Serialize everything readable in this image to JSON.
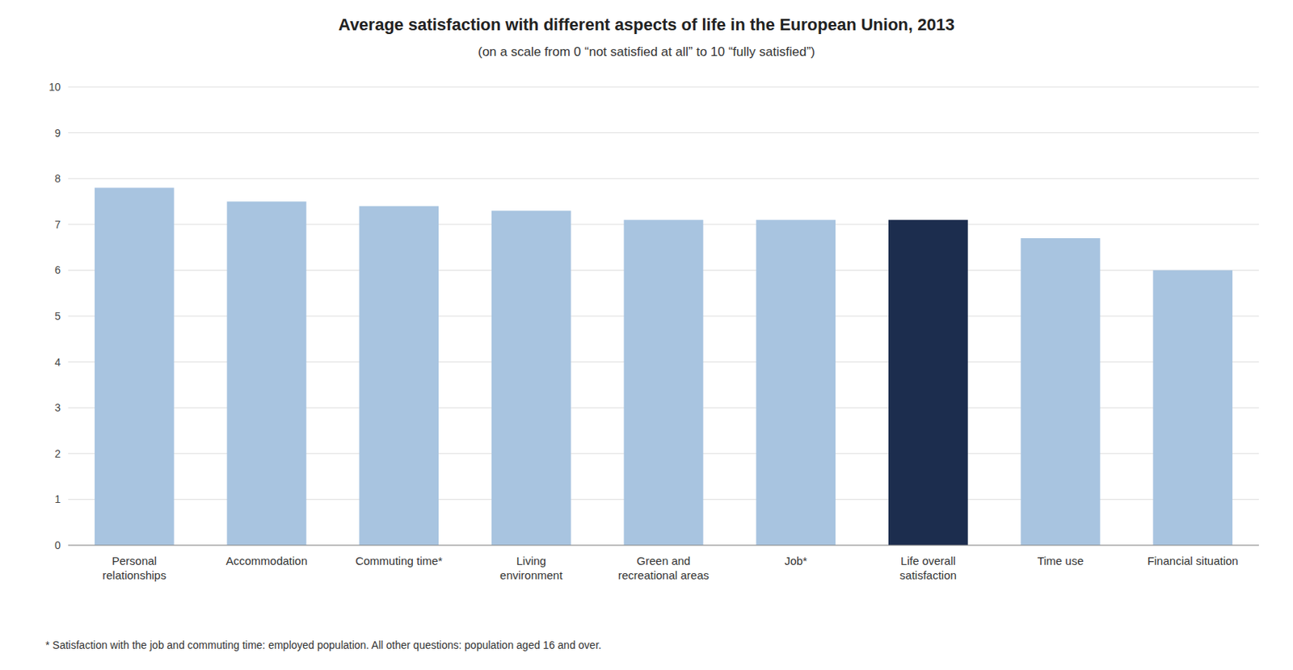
{
  "chart_data": {
    "type": "bar",
    "title": "Average satisfaction with different aspects of life in the European Union, 2013",
    "subtitle": "(on a scale from 0 “not satisfied at all” to 10 “fully satisfied”)",
    "categories": [
      "Personal\nrelationships",
      "Accommodation",
      "Commuting time*",
      "Living\nenvironment",
      "Green and\nrecreational areas",
      "Job*",
      "Life overall\nsatisfaction",
      "Time use",
      "Financial situation"
    ],
    "values": [
      7.8,
      7.5,
      7.4,
      7.3,
      7.1,
      7.1,
      7.1,
      6.7,
      6.0
    ],
    "colors": [
      "#a8c4e0",
      "#a8c4e0",
      "#a8c4e0",
      "#a8c4e0",
      "#a8c4e0",
      "#a8c4e0",
      "#1c2d4e",
      "#a8c4e0",
      "#a8c4e0"
    ],
    "ylim": [
      0,
      10
    ],
    "yticks": [
      0,
      1,
      2,
      3,
      4,
      5,
      6,
      7,
      8,
      9,
      10
    ],
    "grid": true,
    "footnote": "* Satisfaction with the job and commuting time: employed population. All other questions: population aged 16 and over."
  }
}
